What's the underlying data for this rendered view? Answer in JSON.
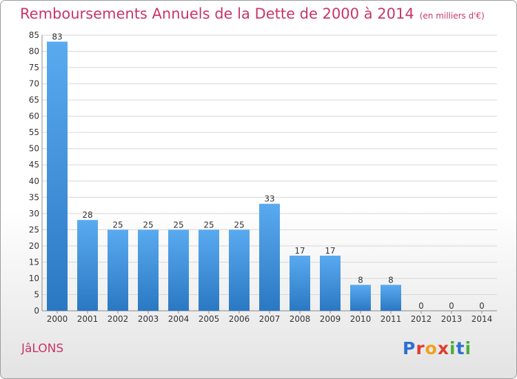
{
  "header": {
    "title": "Remboursements Annuels de la Dette de 2000 à 2014",
    "unit": "(en milliers d'€)"
  },
  "footer": {
    "commune": "JâLONS",
    "brand": "Proxiti",
    "brand_colors": [
      "#2f6fd1",
      "#e03a2f",
      "#f0a01c",
      "#e03a2f",
      "#4caf3c",
      "#2f6fd1",
      "#4caf3c"
    ]
  },
  "chart_data": {
    "type": "bar",
    "categories": [
      "2000",
      "2001",
      "2002",
      "2003",
      "2004",
      "2005",
      "2006",
      "2007",
      "2008",
      "2009",
      "2010",
      "2011",
      "2012",
      "2013",
      "2014"
    ],
    "values": [
      83,
      28,
      25,
      25,
      25,
      25,
      25,
      33,
      17,
      17,
      8,
      8,
      0,
      0,
      0
    ],
    "title": "Remboursements Annuels de la Dette de 2000 à 2014",
    "xlabel": "",
    "ylabel": "",
    "ylim": [
      0,
      85
    ],
    "yticks": [
      0,
      5,
      10,
      15,
      20,
      25,
      30,
      35,
      40,
      45,
      50,
      55,
      60,
      65,
      70,
      75,
      80,
      85
    ],
    "grid": true,
    "bar_color": "#3a8ad8"
  }
}
